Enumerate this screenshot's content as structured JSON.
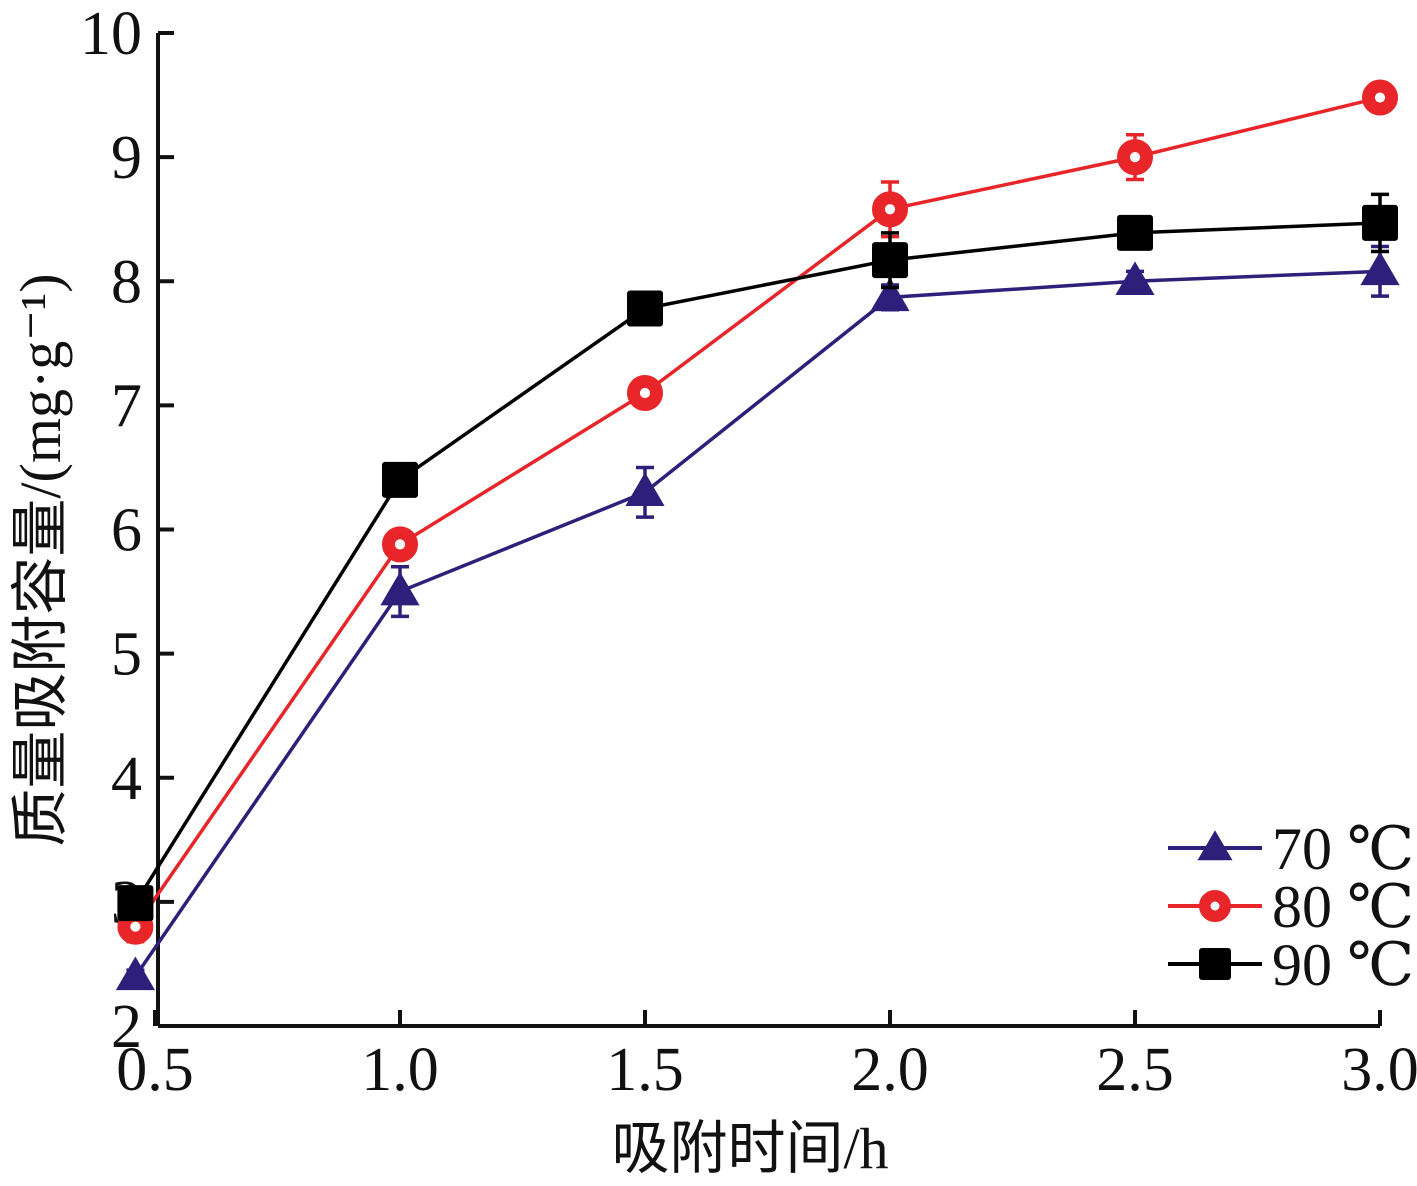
{
  "chart_data": {
    "type": "line",
    "title": "",
    "xlabel": "吸附时间/h",
    "ylabel": "质量吸附容量/(mg·g⁻¹)",
    "x": [
      0.5,
      1.0,
      1.5,
      2.0,
      2.5,
      3.0
    ],
    "x_tick_labels": [
      "0.5",
      "1.0",
      "1.5",
      "2.0",
      "2.5",
      "3.0"
    ],
    "y_ticks": [
      2,
      3,
      4,
      5,
      6,
      7,
      8,
      9,
      10
    ],
    "y_tick_labels": [
      "2",
      "3",
      "4",
      "5",
      "6",
      "7",
      "8",
      "9",
      "10"
    ],
    "xlim": [
      0.46,
      3.0
    ],
    "ylim": [
      2,
      10
    ],
    "grid": false,
    "legend_position": "bottom-right",
    "series": [
      {
        "name": "70 ℃",
        "color": "#2e1f7a",
        "marker": "triangle",
        "values": [
          2.4,
          5.5,
          6.3,
          7.87,
          8.0,
          8.08
        ],
        "errors": [
          0.05,
          0.2,
          0.2,
          0.1,
          0.08,
          0.2
        ]
      },
      {
        "name": "80 ℃",
        "color": "#e8262a",
        "marker": "circle",
        "values": [
          2.8,
          5.88,
          7.1,
          8.58,
          9.0,
          9.48
        ],
        "errors": [
          0.12,
          0.08,
          0.08,
          0.22,
          0.18,
          0.06
        ]
      },
      {
        "name": "90 ℃",
        "color": "#000000",
        "marker": "square",
        "values": [
          2.99,
          6.4,
          7.78,
          8.17,
          8.39,
          8.47
        ],
        "errors": [
          0.05,
          0.05,
          0.05,
          0.22,
          0.05,
          0.23
        ]
      }
    ]
  }
}
